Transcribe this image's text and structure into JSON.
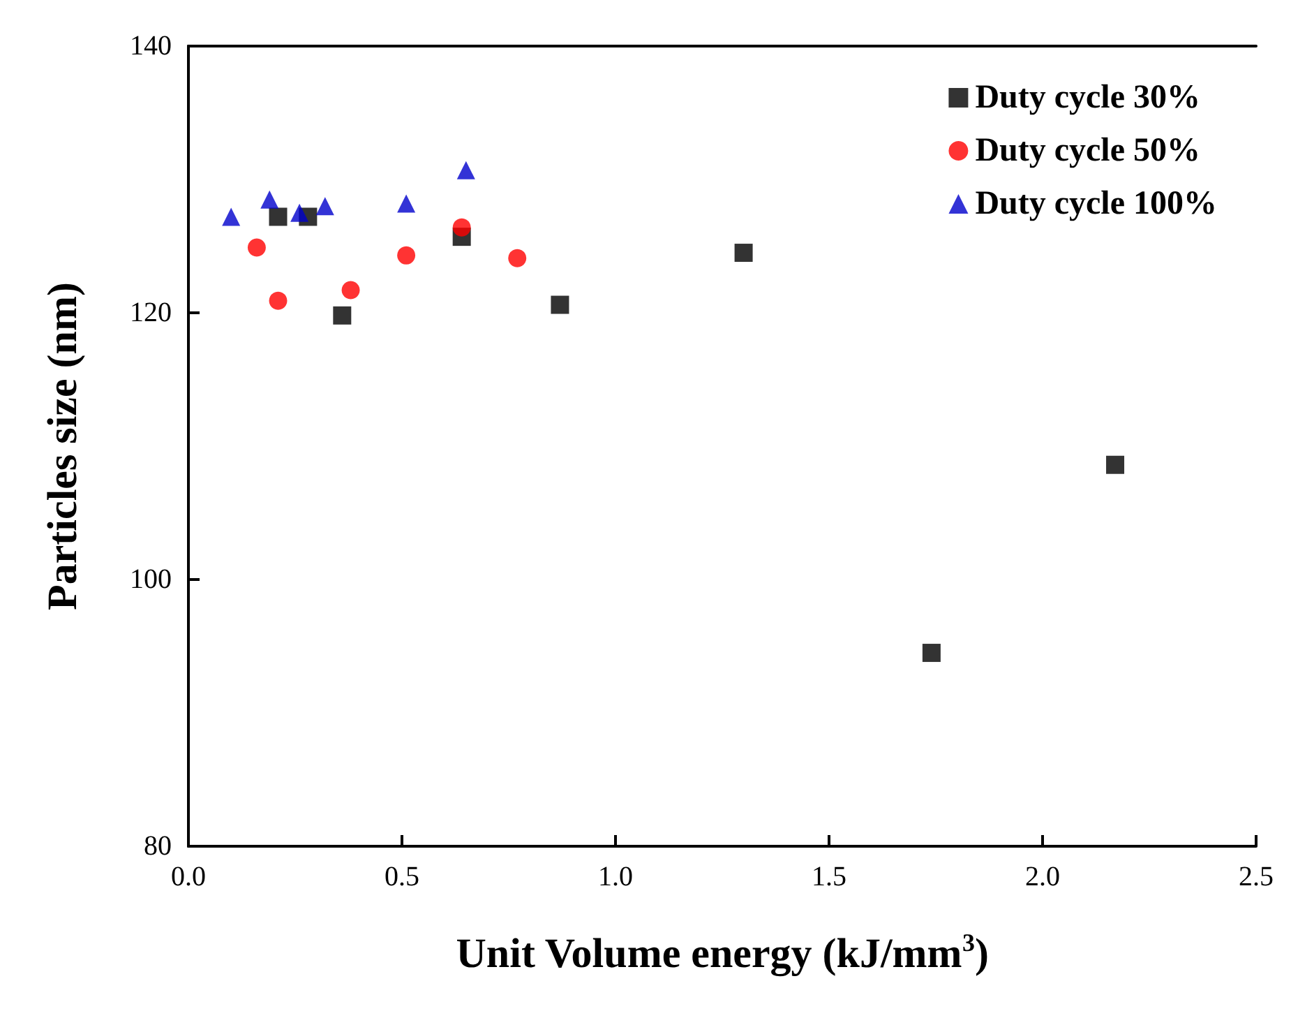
{
  "chart_data": {
    "type": "scatter",
    "xlabel": "Unit Volume energy (kJ/mm$^{3}$)",
    "ylabel": "Particles size (nm)",
    "xlim": [
      0,
      2.5
    ],
    "xticks": [
      {
        "value": 0,
        "label": "0.0"
      },
      {
        "value": 0.5,
        "label": "0.5"
      },
      {
        "value": 1,
        "label": "1.0"
      },
      {
        "value": 1.5,
        "label": "1.5"
      },
      {
        "value": 2,
        "label": "2.0"
      },
      {
        "value": 2.5,
        "label": "2.5"
      }
    ],
    "ylim": [
      80,
      140
    ],
    "yticks": [
      80,
      100,
      120,
      140
    ],
    "grid": false,
    "legend": "top right",
    "series": [
      {
        "name": "Duty cycle 30%",
        "color": "#000000",
        "marker": "square",
        "x": [
          0.21,
          0.28,
          0.36,
          0.64,
          0.87,
          1.3,
          1.74,
          2.17
        ],
        "values": [
          127.2,
          127.2,
          119.8,
          125.7,
          120.6,
          124.5,
          94.5,
          108.6
        ]
      },
      {
        "name": "Duty cycle 50%",
        "color": "#ff0000",
        "marker": "circle",
        "x": [
          0.16,
          0.21,
          0.38,
          0.51,
          0.64,
          0.77
        ],
        "values": [
          124.9,
          120.9,
          121.7,
          124.3,
          126.4,
          124.1
        ]
      },
      {
        "name": "Duty cycle 100%",
        "color": "#0000cc",
        "marker": "triangle",
        "x": [
          0.1,
          0.19,
          0.26,
          0.32,
          0.51,
          0.65
        ],
        "values": [
          127.2,
          128.5,
          127.5,
          128.0,
          128.2,
          130.7
        ]
      }
    ]
  }
}
